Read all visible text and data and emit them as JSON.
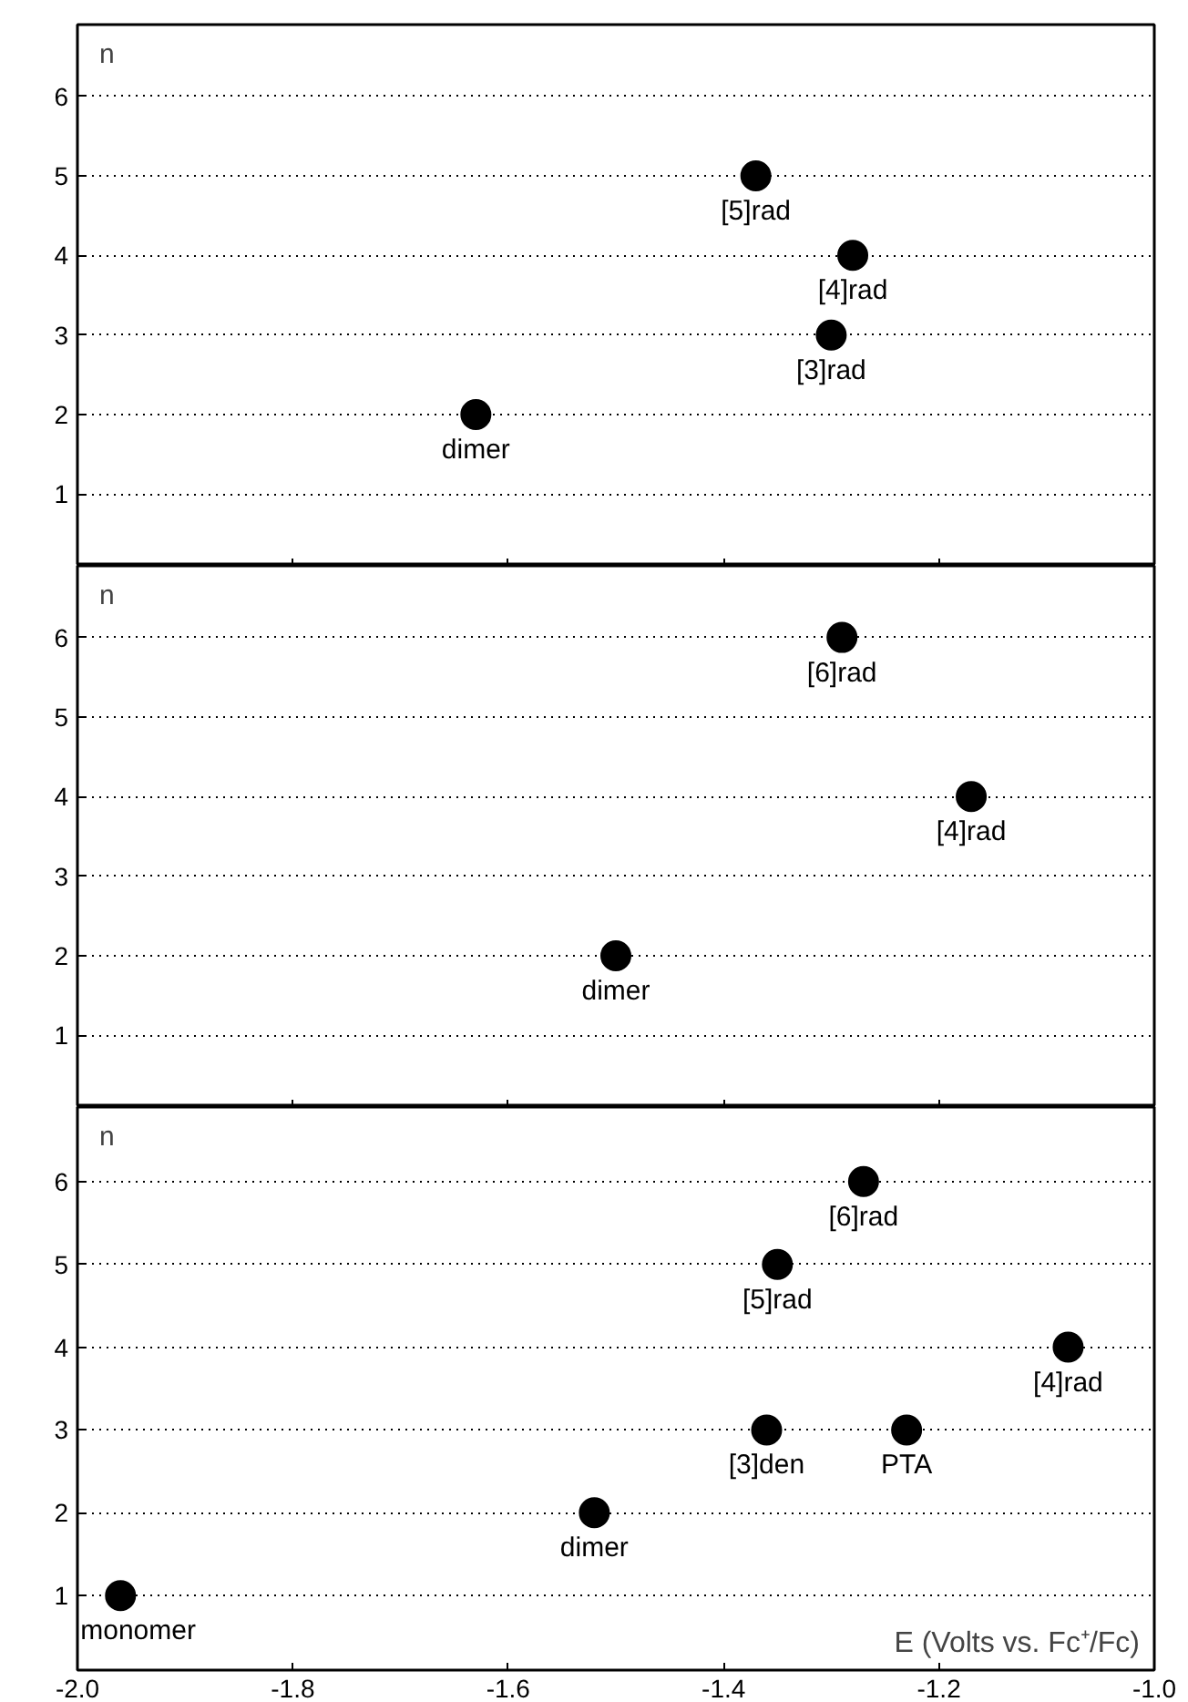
{
  "chart_data": [
    {
      "type": "scatter",
      "ylabel": "n",
      "x": [
        -1.63,
        -1.37,
        -1.28,
        -1.3
      ],
      "values": [
        2,
        5,
        4,
        3
      ],
      "color": "#000000",
      "marker": "circle",
      "grid": "y",
      "tick_labels": "y",
      "xlim": [
        -2.0,
        -1.0
      ],
      "xticks": [
        {
          "value": -2.0,
          "label": null
        },
        {
          "value": -1.8,
          "label": null
        },
        {
          "value": -1.6,
          "label": null
        },
        {
          "value": -1.4,
          "label": null
        },
        {
          "value": -1.2,
          "label": null
        },
        {
          "value": -1.0,
          "label": null
        }
      ],
      "ylim": [
        0.1,
        6.9
      ],
      "yticks": [
        1,
        2,
        3,
        4,
        5,
        6
      ],
      "annotations": [
        {
          "text": "dimer",
          "x": -1.63,
          "y": 2
        },
        {
          "text": "[5]rad",
          "x": -1.37,
          "y": 5
        },
        {
          "text": "[4]rad",
          "x": -1.28,
          "y": 4
        },
        {
          "text": "[3]rad",
          "x": -1.3,
          "y": 3
        }
      ]
    },
    {
      "type": "scatter",
      "ylabel": "n",
      "x": [
        -1.5,
        -1.29,
        -1.17
      ],
      "values": [
        2,
        6,
        4
      ],
      "color": "#000000",
      "marker": "circle",
      "grid": "y",
      "tick_labels": "y",
      "xlim": [
        -2.0,
        -1.0
      ],
      "xticks": [
        {
          "value": -2.0,
          "label": null
        },
        {
          "value": -1.8,
          "label": null
        },
        {
          "value": -1.6,
          "label": null
        },
        {
          "value": -1.4,
          "label": null
        },
        {
          "value": -1.2,
          "label": null
        },
        {
          "value": -1.0,
          "label": null
        }
      ],
      "ylim": [
        0.1,
        6.9
      ],
      "yticks": [
        1,
        2,
        3,
        4,
        5,
        6
      ],
      "annotations": [
        {
          "text": "dimer",
          "x": -1.5,
          "y": 2
        },
        {
          "text": "[6]rad",
          "x": -1.29,
          "y": 6
        },
        {
          "text": "[4]rad",
          "x": -1.17,
          "y": 4
        }
      ]
    },
    {
      "type": "scatter",
      "ylabel": "n",
      "xlabel": "E (Volts vs. Fc⁺/Fc)",
      "x": [
        -1.96,
        -1.52,
        -1.36,
        -1.35,
        -1.27,
        -1.23,
        -1.08
      ],
      "values": [
        1,
        2,
        3,
        5,
        6,
        3,
        4
      ],
      "color": "#000000",
      "marker": "circle",
      "grid": "y",
      "xlim": [
        -2.0,
        -1.0
      ],
      "xticks": [
        {
          "value": -2.0,
          "label": "-2.0"
        },
        {
          "value": -1.8,
          "label": "-1.8"
        },
        {
          "value": -1.6,
          "label": "-1.6"
        },
        {
          "value": -1.4,
          "label": "-1.4"
        },
        {
          "value": -1.2,
          "label": "-1.2"
        },
        {
          "value": -1.0,
          "label": "-1.0"
        }
      ],
      "ylim": [
        0.1,
        6.9
      ],
      "yticks": [
        1,
        2,
        3,
        4,
        5,
        6
      ],
      "annotations": [
        {
          "text": "monomer",
          "x": -1.96,
          "y": 1
        },
        {
          "text": "dimer",
          "x": -1.52,
          "y": 2
        },
        {
          "text": "[3]den",
          "x": -1.36,
          "y": 3
        },
        {
          "text": "[5]rad",
          "x": -1.35,
          "y": 5
        },
        {
          "text": "[6]rad",
          "x": -1.27,
          "y": 6
        },
        {
          "text": "PTA",
          "x": -1.23,
          "y": 3
        },
        {
          "text": "[4]rad",
          "x": -1.08,
          "y": 4
        }
      ]
    }
  ]
}
